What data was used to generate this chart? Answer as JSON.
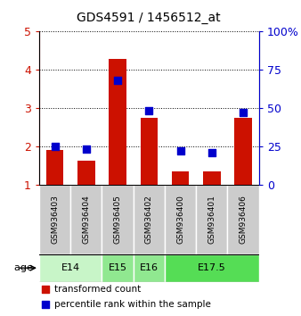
{
  "title": "GDS4591 / 1456512_at",
  "samples": [
    "GSM936403",
    "GSM936404",
    "GSM936405",
    "GSM936402",
    "GSM936400",
    "GSM936401",
    "GSM936406"
  ],
  "red_values": [
    1.9,
    1.62,
    4.28,
    2.75,
    1.35,
    1.35,
    2.75
  ],
  "blue_values": [
    25,
    23,
    68,
    48,
    22,
    21,
    47
  ],
  "ylim_left": [
    1,
    5
  ],
  "ylim_right": [
    0,
    100
  ],
  "yticks_left": [
    1,
    2,
    3,
    4,
    5
  ],
  "yticks_right": [
    0,
    25,
    50,
    75,
    100
  ],
  "yticklabels_right": [
    "0",
    "25",
    "50",
    "75",
    "100%"
  ],
  "age_groups": [
    {
      "label": "E14",
      "span": [
        0,
        2
      ],
      "color": "#c8f5c8"
    },
    {
      "label": "E15",
      "span": [
        2,
        3
      ],
      "color": "#90e890"
    },
    {
      "label": "E16",
      "span": [
        3,
        4
      ],
      "color": "#90e890"
    },
    {
      "label": "E17.5",
      "span": [
        4,
        7
      ],
      "color": "#55dd55"
    }
  ],
  "bar_color": "#cc1100",
  "blue_color": "#0000cc",
  "bar_width": 0.55,
  "blue_size": 30,
  "sample_bg_color": "#cccccc",
  "legend_red": "transformed count",
  "legend_blue": "percentile rank within the sample",
  "age_label": "age"
}
